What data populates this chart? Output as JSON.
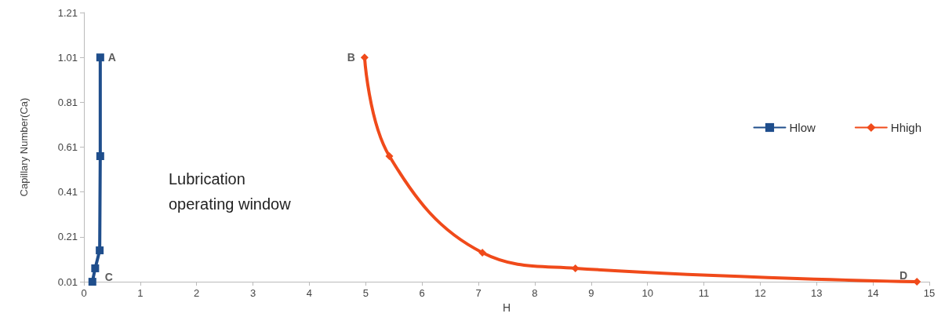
{
  "chart_data": {
    "type": "line",
    "xlabel": "H",
    "ylabel": "Capillary Number(Ca)",
    "xlim": [
      0,
      15
    ],
    "xticks": [
      0,
      1,
      2,
      3,
      4,
      5,
      6,
      7,
      8,
      9,
      10,
      11,
      12,
      13,
      14,
      15
    ],
    "ylim": [
      0.01,
      1.21
    ],
    "yticks": [
      0.01,
      0.21,
      0.41,
      0.61,
      0.81,
      1.01,
      1.21
    ],
    "grid": false,
    "legend": "right",
    "line_style": "solid",
    "series": [
      {
        "name": "Hlow",
        "color": "#1f4e8c",
        "marker": "square",
        "x": [
          0.29,
          0.29,
          0.28,
          0.2,
          0.15
        ],
        "values": [
          1.01,
          0.57,
          0.15,
          0.07,
          0.01
        ]
      },
      {
        "name": "Hhigh",
        "color": "#f04a1a",
        "marker": "diamond",
        "x": [
          4.98,
          5.42,
          7.07,
          8.72,
          14.78
        ],
        "values": [
          1.01,
          0.57,
          0.14,
          0.07,
          0.01
        ]
      }
    ],
    "annotations": [
      {
        "text": "A",
        "x": 0.29,
        "y": 1.01
      },
      {
        "text": "B",
        "x": 4.98,
        "y": 1.01
      },
      {
        "text": "C",
        "x": 0.15,
        "y": 0.01
      },
      {
        "text": "D",
        "x": 14.78,
        "y": 0.01
      },
      "Lubrication operating window"
    ]
  }
}
